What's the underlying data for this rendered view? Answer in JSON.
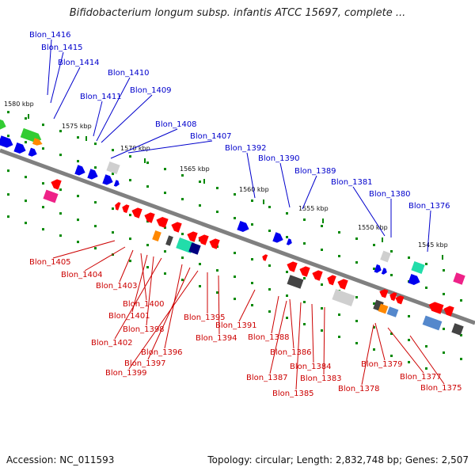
{
  "title": "Bifidobacterium longum subsp. infantis ATCC 15697, complete ...",
  "footer": {
    "accession": "Accession: NC_011593",
    "summary": "Topology: circular; Length: 2,832,748 bp; Genes: 2,507"
  },
  "colors": {
    "forward_label": "#0000cc",
    "reverse_label": "#cc0000",
    "red": "#ff0000",
    "blue": "#0000ee",
    "green": "#33cc33",
    "orange": "#ff8800",
    "magenta": "#ee2288",
    "cyan": "#22ddaa",
    "gray": "#999999",
    "dark": "#444444",
    "light": "#cfcfcf",
    "steel": "#5588cc",
    "navy": "#000080",
    "dots": "#008800"
  },
  "kbp_marks": [
    "1580 kbp",
    "1575 kbp",
    "1570 kbp",
    "1565 kbp",
    "1560 kbp",
    "1555 kbp",
    "1550 kbp",
    "1545 kbp"
  ],
  "forward_labels": [
    "Blon_1416",
    "Blon_1415",
    "Blon_1414",
    "Blon_1410",
    "Blon_1411",
    "Blon_1409",
    "Blon_1408",
    "Blon_1407",
    "Blon_1392",
    "Blon_1390",
    "Blon_1389",
    "Blon_1381",
    "Blon_1380",
    "Blon_1376"
  ],
  "reverse_labels": [
    "Blon_1405",
    "Blon_1404",
    "Blon_1403",
    "Blon_1400",
    "Blon_1401",
    "Blon_1398",
    "Blon_1402",
    "Blon_1396",
    "Blon_1397",
    "Blon_1399",
    "Blon_1395",
    "Blon_1394",
    "Blon_1391",
    "Blon_1388",
    "Blon_1386",
    "Blon_1384",
    "Blon_1387",
    "Blon_1385",
    "Blon_1383",
    "Blon_1379",
    "Blon_1378",
    "Blon_1377",
    "Blon_1375"
  ]
}
